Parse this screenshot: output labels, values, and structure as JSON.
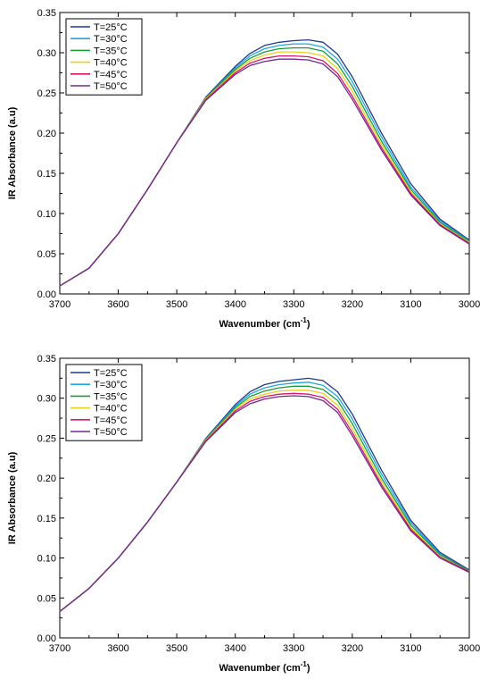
{
  "chart_data": [
    {
      "type": "line",
      "title": "",
      "xlabel": "Wavenumber (cm",
      "xlabel_sup": "-1",
      "xlabel_suffix": ")",
      "ylabel": "IR Absorbance (a.u)",
      "xlim": [
        3700,
        3000
      ],
      "ylim": [
        0,
        0.35
      ],
      "xticks": [
        3700,
        3600,
        3500,
        3400,
        3300,
        3200,
        3100,
        3000
      ],
      "xtick_labels": [
        "3700",
        "3600",
        "3500",
        "3400",
        "3300",
        "3200",
        "3100",
        "3000"
      ],
      "yticks": [
        0,
        0.05,
        0.1,
        0.15,
        0.2,
        0.25,
        0.3,
        0.35
      ],
      "ytick_labels": [
        "0.00",
        "0.05",
        "0.10",
        "0.15",
        "0.20",
        "0.25",
        "0.30",
        "0.35"
      ],
      "grid": false,
      "legend_position": "top-left",
      "x": [
        3700,
        3650,
        3600,
        3550,
        3500,
        3450,
        3400,
        3375,
        3350,
        3325,
        3300,
        3275,
        3250,
        3225,
        3200,
        3150,
        3100,
        3050,
        3000
      ],
      "series": [
        {
          "name": "T=25°C",
          "color": "#1f3a8a",
          "values": [
            0.01,
            0.032,
            0.075,
            0.13,
            0.188,
            0.245,
            0.283,
            0.299,
            0.309,
            0.313,
            0.315,
            0.316,
            0.313,
            0.298,
            0.27,
            0.2,
            0.137,
            0.093,
            0.067
          ]
        },
        {
          "name": "T=30°C",
          "color": "#1ea7e1",
          "values": [
            0.01,
            0.032,
            0.075,
            0.13,
            0.188,
            0.244,
            0.281,
            0.296,
            0.305,
            0.309,
            0.311,
            0.311,
            0.307,
            0.292,
            0.264,
            0.195,
            0.133,
            0.091,
            0.066
          ]
        },
        {
          "name": "T=35°C",
          "color": "#1a9a3c",
          "values": [
            0.01,
            0.032,
            0.075,
            0.13,
            0.188,
            0.244,
            0.279,
            0.293,
            0.301,
            0.305,
            0.306,
            0.306,
            0.302,
            0.286,
            0.258,
            0.19,
            0.13,
            0.089,
            0.065
          ]
        },
        {
          "name": "T=40°C",
          "color": "#e6d21a",
          "values": [
            0.01,
            0.032,
            0.075,
            0.13,
            0.188,
            0.243,
            0.277,
            0.29,
            0.297,
            0.301,
            0.301,
            0.3,
            0.296,
            0.28,
            0.252,
            0.186,
            0.127,
            0.087,
            0.064
          ]
        },
        {
          "name": "T=45°C",
          "color": "#d4186e",
          "values": [
            0.01,
            0.032,
            0.075,
            0.13,
            0.188,
            0.242,
            0.275,
            0.287,
            0.293,
            0.296,
            0.296,
            0.295,
            0.29,
            0.274,
            0.246,
            0.182,
            0.125,
            0.086,
            0.063
          ]
        },
        {
          "name": "T=50°C",
          "color": "#6e2a8c",
          "values": [
            0.01,
            0.032,
            0.075,
            0.13,
            0.188,
            0.241,
            0.273,
            0.284,
            0.289,
            0.292,
            0.292,
            0.291,
            0.286,
            0.27,
            0.242,
            0.179,
            0.123,
            0.085,
            0.062
          ]
        }
      ]
    },
    {
      "type": "line",
      "title": "",
      "xlabel": "Wavenumber (cm",
      "xlabel_sup": "-1",
      "xlabel_suffix": ")",
      "ylabel": "IR Absorbance (a.u)",
      "xlim": [
        3700,
        3000
      ],
      "ylim": [
        0,
        0.35
      ],
      "xticks": [
        3700,
        3600,
        3500,
        3400,
        3300,
        3200,
        3100,
        3000
      ],
      "xtick_labels": [
        "3700",
        "3600",
        "3500",
        "3400",
        "3300",
        "3200",
        "3100",
        "3000"
      ],
      "yticks": [
        0,
        0.05,
        0.1,
        0.15,
        0.2,
        0.25,
        0.3,
        0.35
      ],
      "ytick_labels": [
        "0.00",
        "0.05",
        "0.10",
        "0.15",
        "0.20",
        "0.25",
        "0.30",
        "0.35"
      ],
      "grid": false,
      "legend_position": "top-left",
      "x": [
        3700,
        3650,
        3600,
        3550,
        3500,
        3450,
        3400,
        3375,
        3350,
        3325,
        3300,
        3275,
        3250,
        3225,
        3200,
        3150,
        3100,
        3050,
        3000
      ],
      "series": [
        {
          "name": "T=25°C",
          "color": "#1f3a8a",
          "values": [
            0.033,
            0.062,
            0.1,
            0.145,
            0.195,
            0.25,
            0.292,
            0.308,
            0.317,
            0.321,
            0.323,
            0.325,
            0.322,
            0.308,
            0.28,
            0.21,
            0.147,
            0.107,
            0.085
          ]
        },
        {
          "name": "T=30°C",
          "color": "#1ea7e1",
          "values": [
            0.033,
            0.062,
            0.1,
            0.145,
            0.195,
            0.249,
            0.29,
            0.305,
            0.313,
            0.317,
            0.319,
            0.32,
            0.316,
            0.302,
            0.274,
            0.205,
            0.144,
            0.105,
            0.084
          ]
        },
        {
          "name": "T=35°C",
          "color": "#1a9a3c",
          "values": [
            0.033,
            0.062,
            0.1,
            0.145,
            0.195,
            0.249,
            0.288,
            0.302,
            0.309,
            0.313,
            0.315,
            0.315,
            0.311,
            0.297,
            0.268,
            0.2,
            0.141,
            0.104,
            0.084
          ]
        },
        {
          "name": "T=40°C",
          "color": "#e6d21a",
          "values": [
            0.033,
            0.062,
            0.1,
            0.145,
            0.195,
            0.248,
            0.286,
            0.299,
            0.305,
            0.309,
            0.31,
            0.31,
            0.306,
            0.291,
            0.262,
            0.196,
            0.138,
            0.102,
            0.083
          ]
        },
        {
          "name": "T=45°C",
          "color": "#d4186e",
          "values": [
            0.033,
            0.062,
            0.1,
            0.145,
            0.195,
            0.247,
            0.284,
            0.296,
            0.302,
            0.305,
            0.306,
            0.305,
            0.301,
            0.286,
            0.257,
            0.192,
            0.136,
            0.101,
            0.083
          ]
        },
        {
          "name": "T=50°C",
          "color": "#6e2a8c",
          "values": [
            0.033,
            0.062,
            0.1,
            0.145,
            0.195,
            0.246,
            0.282,
            0.293,
            0.299,
            0.302,
            0.303,
            0.302,
            0.297,
            0.282,
            0.253,
            0.189,
            0.134,
            0.1,
            0.082
          ]
        }
      ]
    }
  ]
}
